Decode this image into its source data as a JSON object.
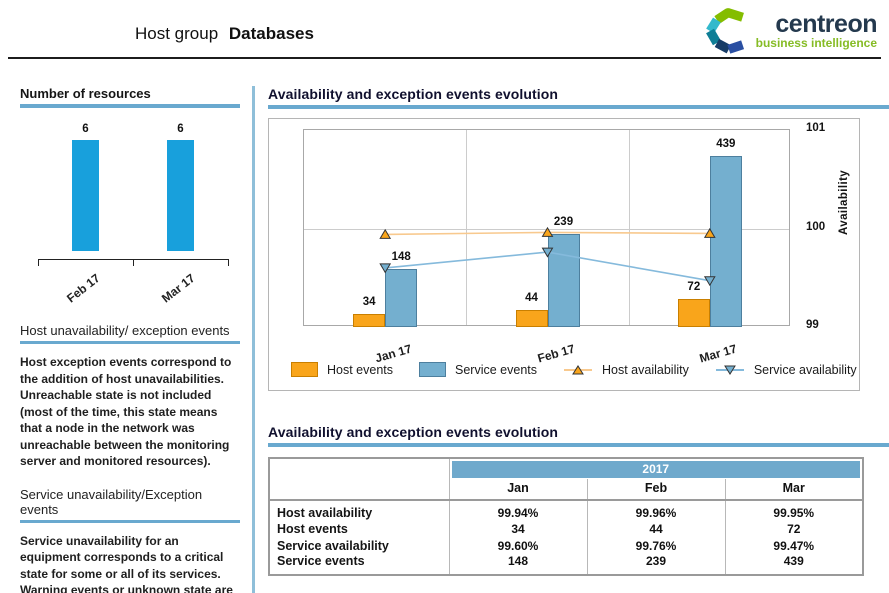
{
  "header": {
    "title_prefix": "Host group",
    "title_emphasis": "Databases",
    "logo": {
      "name": "centreon",
      "tagline": "business intelligence"
    }
  },
  "sidebar": {
    "resources": {
      "title": "Number of resources"
    },
    "sections": [
      {
        "title": "Host unavailability/ exception events",
        "body": "Host exception events correspond to the addition of host unavailabilities. Unreachable state is not included (most of the time, this state means that a node in the network was unreachable between the monitoring server and monitored resources)."
      },
      {
        "title": "Service unavailability/Exception events",
        "body": "Service unavailability for an equipment corresponds to a critical state for some or all of its services. Warning events or unknown state are not included in this calculation."
      }
    ]
  },
  "main": {
    "chart_section_title": "Availability and exception events evolution",
    "table_section_title": "Availability and exception events evolution"
  },
  "colors": {
    "bright_blue": "#18a0dc",
    "steel_blue": "#6fa9cc",
    "steel_blue_border": "#4d7f9e",
    "orange": "#f9a51b",
    "orange_border": "#c97f00",
    "host_line": "#f8c98e",
    "service_line": "#85badc",
    "underline_blue": "#69a9cf",
    "logo_green": "#86bc25",
    "logo_dark": "#24394e"
  },
  "chart_data": [
    {
      "id": "resources",
      "type": "bar",
      "title": "Number of resources",
      "categories": [
        "Feb 17",
        "Mar 17"
      ],
      "values": [
        6,
        6
      ],
      "ylim": [
        0,
        7
      ],
      "bar_color": "#18a0dc",
      "grid": false,
      "legend_position": "none"
    },
    {
      "id": "evolution",
      "type": "bar+line",
      "title": "Availability and exception events evolution",
      "categories": [
        "Jan 17",
        "Feb 17",
        "Mar 17"
      ],
      "bar_series": [
        {
          "name": "Host events",
          "values": [
            34,
            44,
            72
          ],
          "color": "#f9a51b",
          "border": "#c97f00"
        },
        {
          "name": "Service events",
          "values": [
            148,
            239,
            439
          ],
          "color": "#74afcf",
          "border": "#4d7f9e"
        }
      ],
      "line_series": [
        {
          "name": "Host availability",
          "values": [
            99.94,
            99.96,
            99.95
          ],
          "color": "#f8c98e",
          "marker": "triangle-up",
          "marker_fill": "#f9a51b"
        },
        {
          "name": "Service availability",
          "values": [
            99.6,
            99.76,
            99.47
          ],
          "color": "#85badc",
          "marker": "triangle-down",
          "marker_fill": "#74afcf"
        }
      ],
      "left_ylim": [
        0,
        505
      ],
      "right_axis": {
        "label": "Availability",
        "ticks": [
          101,
          100,
          99
        ],
        "ylim": [
          99,
          101
        ]
      },
      "grid": true,
      "legend_position": "bottom"
    },
    {
      "id": "evolution-table",
      "type": "table",
      "title": "Availability and exception events evolution",
      "year_header": "2017",
      "columns": [
        "Jan",
        "Feb",
        "Mar"
      ],
      "rows": [
        {
          "label": "Host availability",
          "values": [
            "99.94%",
            "99.96%",
            "99.95%"
          ]
        },
        {
          "label": "Host events",
          "values": [
            "34",
            "44",
            "72"
          ]
        },
        {
          "label": "Service availability",
          "values": [
            "99.60%",
            "99.76%",
            "99.47%"
          ]
        },
        {
          "label": "Service events",
          "values": [
            "148",
            "239",
            "439"
          ]
        }
      ]
    }
  ]
}
